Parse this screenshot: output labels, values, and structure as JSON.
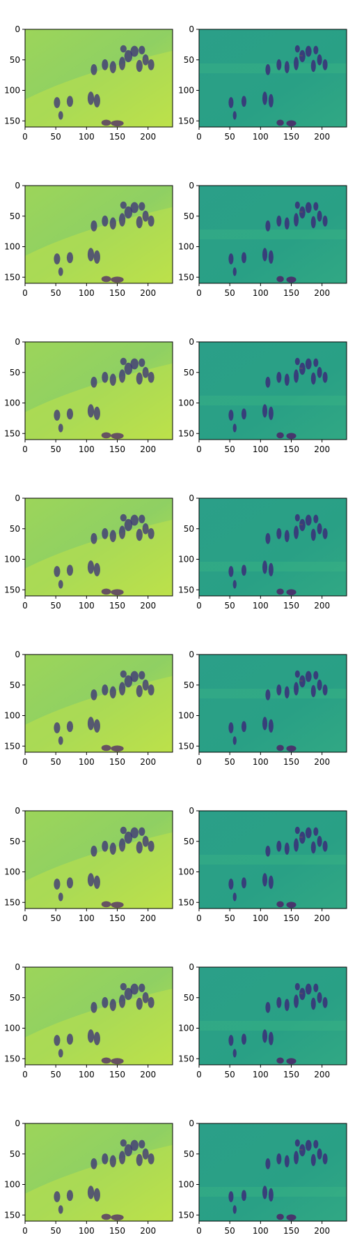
{
  "figure": {
    "rows": 8,
    "cols": 2,
    "x_ticks": [
      "0",
      "50",
      "100",
      "150",
      "200"
    ],
    "y_ticks": [
      "0",
      "50",
      "100",
      "150"
    ]
  },
  "chart_data": {
    "type": "heatmap",
    "xlim": [
      0,
      240
    ],
    "ylim": [
      0,
      160
    ],
    "x_tick_values": [
      0,
      50,
      100,
      150,
      200
    ],
    "y_tick_values": [
      0,
      50,
      100,
      150
    ],
    "colormap": "viridis",
    "colors": {
      "left_background": "#93d35f",
      "left_highlight": "#bfe24a",
      "right_background": "#2a9e88",
      "right_highlight": "#3fb985",
      "figure": "#3a2d78",
      "figure_dark": "#4c2367"
    },
    "panel_columns": [
      "left-column",
      "right-column"
    ],
    "row_count": 8
  }
}
